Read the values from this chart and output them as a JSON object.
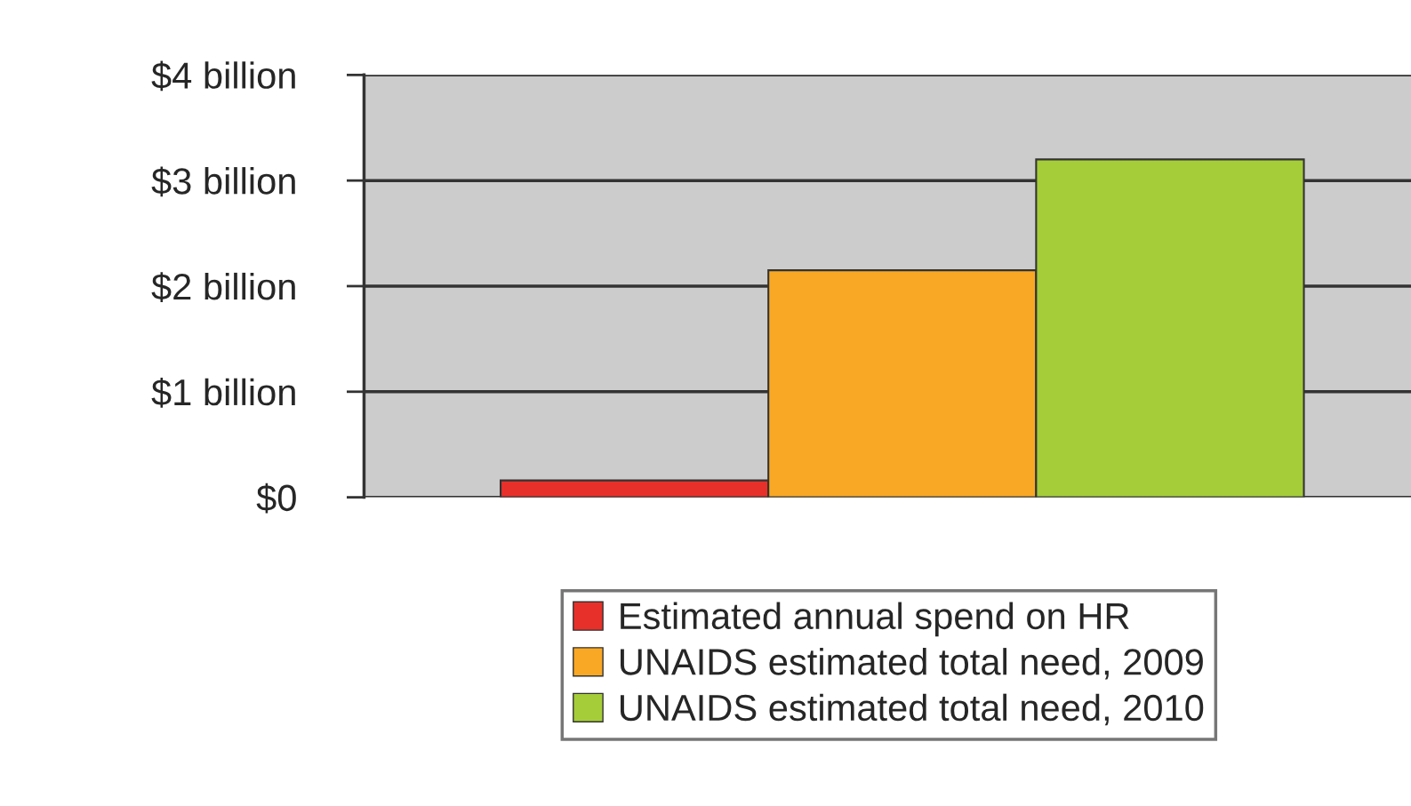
{
  "chart_data": {
    "type": "bar",
    "categories": [
      null
    ],
    "series": [
      {
        "name": "Estimated annual spend on HR",
        "color": "#e8302a",
        "values": [
          0.16
        ]
      },
      {
        "name": "UNAIDS estimated total need, 2009",
        "color": "#f9a825",
        "values": [
          2.15
        ]
      },
      {
        "name": "UNAIDS estimated total need, 2010",
        "color": "#a5cd39",
        "values": [
          3.2
        ]
      }
    ],
    "ylim": [
      0,
      4
    ],
    "yticks": [
      {
        "value": 0,
        "label": "$0"
      },
      {
        "value": 1,
        "label": "$1 billion"
      },
      {
        "value": 2,
        "label": "$2 billion"
      },
      {
        "value": 3,
        "label": "$3 billion"
      },
      {
        "value": 4,
        "label": "$4 billion"
      }
    ],
    "grid": "y",
    "legend": "bottom"
  }
}
